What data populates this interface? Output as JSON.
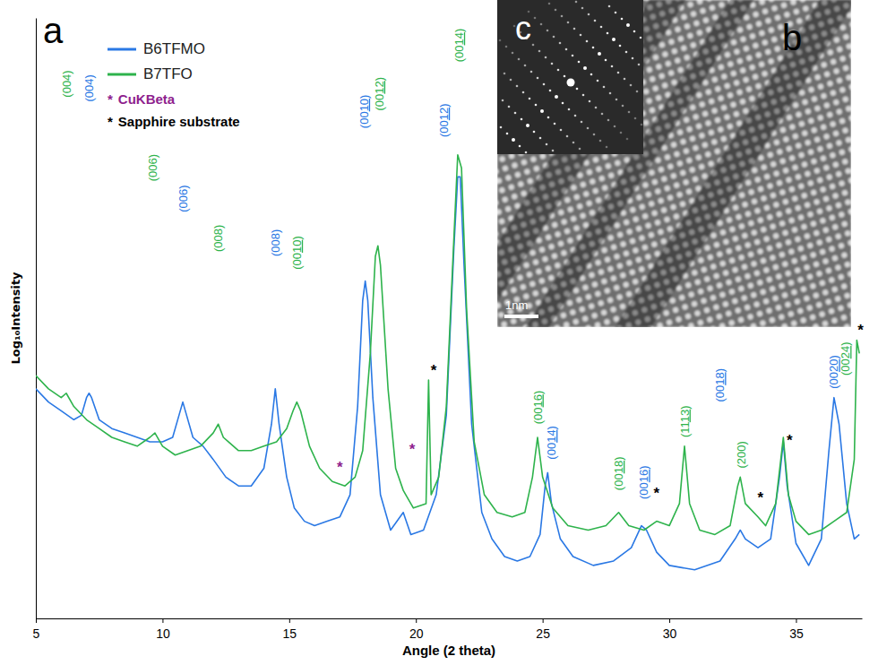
{
  "chart_data": {
    "type": "line",
    "panel": "a",
    "x_label": "Angle (2 theta)",
    "y_label": "Log₁₀Intensity",
    "xlim": [
      5,
      37.6
    ],
    "xticks": [
      5,
      10,
      15,
      20,
      25,
      30,
      35
    ],
    "ylim": [
      0,
      6.8
    ],
    "tick_labels": "x",
    "legend": "upper left",
    "series": [
      {
        "name": "B6TFMO",
        "color": "#2a78e4",
        "x": [
          5.0,
          5.5,
          6.0,
          6.5,
          6.8,
          7.0,
          7.1,
          7.2,
          7.5,
          8.0,
          8.5,
          9.0,
          9.5,
          10.0,
          10.4,
          10.65,
          10.8,
          10.95,
          11.2,
          11.6,
          12.0,
          12.5,
          13.0,
          13.5,
          14.0,
          14.3,
          14.45,
          14.6,
          14.9,
          15.2,
          15.6,
          16.0,
          16.5,
          17.0,
          17.4,
          17.7,
          17.9,
          18.0,
          18.1,
          18.3,
          18.6,
          19.0,
          19.5,
          19.8,
          20.3,
          20.8,
          21.2,
          21.5,
          21.65,
          21.75,
          21.9,
          22.2,
          22.6,
          23.0,
          23.5,
          24.0,
          24.5,
          24.9,
          25.1,
          25.2,
          25.35,
          25.7,
          26.2,
          27.0,
          27.8,
          28.5,
          28.9,
          29.1,
          29.5,
          30.0,
          31.0,
          32.0,
          32.6,
          32.8,
          33.0,
          33.5,
          34.0,
          34.35,
          34.5,
          34.65,
          35.0,
          35.5,
          36.0,
          36.3,
          36.5,
          36.7,
          37.0,
          37.3,
          37.5
        ],
        "values": [
          2.6,
          2.45,
          2.35,
          2.25,
          2.3,
          2.5,
          2.55,
          2.5,
          2.25,
          2.15,
          2.1,
          2.05,
          2.0,
          2.0,
          2.05,
          2.3,
          2.45,
          2.3,
          2.05,
          1.95,
          1.8,
          1.6,
          1.5,
          1.5,
          1.7,
          2.2,
          2.6,
          2.2,
          1.6,
          1.25,
          1.1,
          1.05,
          1.1,
          1.15,
          1.4,
          2.4,
          3.6,
          3.82,
          3.6,
          2.5,
          1.4,
          1.0,
          1.2,
          0.95,
          1.0,
          1.4,
          2.3,
          4.2,
          5.0,
          5.0,
          4.0,
          2.2,
          1.2,
          0.9,
          0.7,
          0.65,
          0.7,
          0.95,
          1.5,
          1.65,
          1.3,
          0.9,
          0.7,
          0.6,
          0.65,
          0.8,
          1.05,
          1.0,
          0.75,
          0.6,
          0.55,
          0.65,
          0.9,
          1.0,
          0.9,
          0.8,
          0.9,
          1.6,
          2.0,
          1.5,
          0.85,
          0.6,
          0.9,
          1.9,
          2.5,
          2.2,
          1.3,
          0.9,
          0.95
        ]
      },
      {
        "name": "B7TFO",
        "color": "#2eb34c",
        "x": [
          5.0,
          5.5,
          6.0,
          6.2,
          6.5,
          7.0,
          7.5,
          8.0,
          8.5,
          9.0,
          9.5,
          9.7,
          10.0,
          10.5,
          11.0,
          11.5,
          12.0,
          12.2,
          12.4,
          13.0,
          13.5,
          14.0,
          14.5,
          14.9,
          15.15,
          15.3,
          15.45,
          15.8,
          16.2,
          16.7,
          17.2,
          17.6,
          17.9,
          18.2,
          18.4,
          18.5,
          18.6,
          18.9,
          19.2,
          19.5,
          19.6,
          19.9,
          20.4,
          20.5,
          20.6,
          20.9,
          21.2,
          21.45,
          21.65,
          21.8,
          22.0,
          22.3,
          22.7,
          23.2,
          23.8,
          24.3,
          24.6,
          24.8,
          25.0,
          25.4,
          26.0,
          26.8,
          27.5,
          28.0,
          28.4,
          29.0,
          29.5,
          30.0,
          30.4,
          30.6,
          30.8,
          31.2,
          31.8,
          32.4,
          32.7,
          32.8,
          33.0,
          33.5,
          33.8,
          34.2,
          34.5,
          34.7,
          35.0,
          35.5,
          36.0,
          36.5,
          37.0,
          37.3,
          37.4,
          37.5
        ],
        "values": [
          2.75,
          2.6,
          2.5,
          2.55,
          2.4,
          2.25,
          2.15,
          2.05,
          2.0,
          1.95,
          2.05,
          2.1,
          1.95,
          1.85,
          1.9,
          1.95,
          2.1,
          2.2,
          2.05,
          1.9,
          1.9,
          1.95,
          2.0,
          2.15,
          2.35,
          2.45,
          2.35,
          1.95,
          1.7,
          1.55,
          1.5,
          1.6,
          1.9,
          3.0,
          4.1,
          4.22,
          4.0,
          2.6,
          1.7,
          1.45,
          1.4,
          1.25,
          1.3,
          2.7,
          1.4,
          1.6,
          2.4,
          4.0,
          5.25,
          5.1,
          3.5,
          2.0,
          1.4,
          1.2,
          1.15,
          1.2,
          1.6,
          2.05,
          1.6,
          1.25,
          1.05,
          1.0,
          1.05,
          1.2,
          1.05,
          1.0,
          1.1,
          1.05,
          1.3,
          1.95,
          1.3,
          1.0,
          0.95,
          1.05,
          1.5,
          1.6,
          1.3,
          1.15,
          1.05,
          1.3,
          2.05,
          1.4,
          1.1,
          0.95,
          1.0,
          1.1,
          1.2,
          1.8,
          3.15,
          3.0
        ]
      }
    ],
    "notes": [
      {
        "symbol": "*",
        "text": "CuKBeta",
        "color": "#8e1f8e"
      },
      {
        "symbol": "*",
        "text": "Sapphire substrate",
        "color": "#000000"
      }
    ],
    "peak_labels": [
      {
        "text": "(004)",
        "x": 6.2,
        "y": 5.9,
        "series": 1
      },
      {
        "text": "(004)",
        "x": 7.1,
        "y": 5.85,
        "series": 0
      },
      {
        "text": "(006)",
        "x": 9.6,
        "y": 4.95,
        "series": 1
      },
      {
        "text": "(006)",
        "x": 10.8,
        "y": 4.6,
        "series": 0
      },
      {
        "text": "(008)",
        "x": 12.2,
        "y": 4.15,
        "series": 1
      },
      {
        "text": "(008)",
        "x": 14.45,
        "y": 4.1,
        "series": 0
      },
      {
        "text": "(0010)",
        "x": 15.3,
        "y": 3.95,
        "series": 1
      },
      {
        "text": "(0010)",
        "x": 17.95,
        "y": 5.55,
        "series": 0
      },
      {
        "text": "(0012)",
        "x": 18.55,
        "y": 5.75,
        "series": 1
      },
      {
        "text": "(0012)",
        "x": 21.1,
        "y": 5.45,
        "series": 0
      },
      {
        "text": "(0014)",
        "x": 21.7,
        "y": 6.3,
        "series": 1
      },
      {
        "text": "(0016)",
        "x": 24.8,
        "y": 2.2,
        "series": 1
      },
      {
        "text": "(0014)",
        "x": 25.35,
        "y": 1.8,
        "series": 0
      },
      {
        "text": "(0018)",
        "x": 28.0,
        "y": 1.45,
        "series": 1
      },
      {
        "text": "(0016)",
        "x": 29.0,
        "y": 1.35,
        "series": 0
      },
      {
        "text": "(1113)",
        "x": 30.6,
        "y": 2.05,
        "series": 1
      },
      {
        "text": "(0018)",
        "x": 32.0,
        "y": 2.45,
        "series": 0
      },
      {
        "text": "(200)",
        "x": 32.85,
        "y": 1.7,
        "series": 1
      },
      {
        "text": "(0020)",
        "x": 36.5,
        "y": 2.6,
        "series": 0
      },
      {
        "text": "(0024)",
        "x": 36.95,
        "y": 2.75,
        "series": 1
      }
    ],
    "asterisks": [
      {
        "x": 17.0,
        "y": 1.75,
        "note": 0
      },
      {
        "x": 19.85,
        "y": 1.95,
        "note": 0
      },
      {
        "x": 20.7,
        "y": 2.85,
        "note": 1
      },
      {
        "x": 29.5,
        "y": 1.45,
        "note": 1
      },
      {
        "x": 33.6,
        "y": 1.4,
        "note": 1
      },
      {
        "x": 34.75,
        "y": 2.05,
        "note": 1
      },
      {
        "x": 37.55,
        "y": 3.3,
        "note": 1
      }
    ]
  },
  "inset": {
    "panel": "b",
    "subpanel": "c",
    "scale_bar": "1nm"
  }
}
